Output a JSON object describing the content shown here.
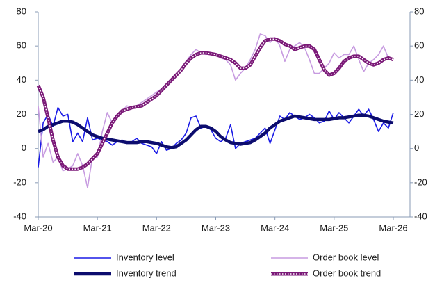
{
  "chart_data": {
    "type": "line",
    "categories": [
      "Mar-20",
      null,
      null,
      null,
      null,
      null,
      null,
      null,
      null,
      null,
      null,
      null,
      "Mar-21",
      null,
      null,
      null,
      null,
      null,
      null,
      null,
      null,
      null,
      null,
      null,
      "Mar-22",
      null,
      null,
      null,
      null,
      null,
      null,
      null,
      null,
      null,
      null,
      null,
      "Mar-23",
      null,
      null,
      null,
      null,
      null,
      null,
      null,
      null,
      null,
      null,
      null,
      "Mar-24",
      null,
      null,
      null,
      null,
      null,
      null,
      null,
      null,
      null,
      null,
      null,
      "Mar-25",
      null,
      null,
      null,
      null,
      null,
      null,
      null,
      null,
      null,
      null,
      null,
      "Mar-26"
    ],
    "ylim": [
      -40,
      80
    ],
    "yticks": [
      -40,
      -20,
      0,
      20,
      40,
      60,
      80
    ],
    "y2lim": [
      -40,
      80
    ],
    "y2ticks": [
      -40,
      -20,
      0,
      20,
      40,
      60,
      80
    ],
    "series": [
      {
        "name": "Inventory level",
        "color": "#1a1ae6",
        "style": "thin",
        "values": [
          -11,
          15,
          20,
          13,
          24,
          19,
          20,
          4,
          9,
          4,
          18,
          5,
          6,
          5,
          4,
          2,
          4,
          5,
          3,
          4,
          6,
          3,
          2,
          1,
          -3,
          4,
          -1,
          0,
          3,
          5,
          9,
          18,
          19,
          12,
          13,
          11,
          6,
          4,
          6,
          14,
          0,
          3,
          4,
          5,
          6,
          9,
          12,
          3,
          11,
          19,
          17,
          21,
          19,
          17,
          18,
          20,
          18,
          15,
          16,
          22,
          17,
          21,
          18,
          15,
          19,
          23,
          19,
          23,
          17,
          10,
          15,
          12,
          21
        ]
      },
      {
        "name": "Order book level",
        "color": "#c79be0",
        "style": "thin",
        "values": [
          25,
          -5,
          3,
          -8,
          -5,
          -13,
          -12,
          -10,
          -3,
          -10,
          -23,
          -5,
          -5,
          10,
          21,
          15,
          20,
          22,
          25,
          24,
          25,
          27,
          29,
          31,
          33,
          35,
          38,
          41,
          44,
          47,
          51,
          55,
          58,
          56,
          55,
          56,
          55,
          53,
          52,
          49,
          40,
          44,
          47,
          52,
          58,
          67,
          66,
          62,
          65,
          60,
          51,
          58,
          60,
          62,
          59,
          52,
          44,
          44,
          47,
          50,
          56,
          53,
          55,
          55,
          60,
          52,
          45,
          50,
          52,
          55,
          60,
          53,
          52
        ]
      },
      {
        "name": "Inventory trend",
        "color": "#0c0c6e",
        "style": "thick",
        "values": [
          10,
          11,
          13,
          14,
          15,
          16,
          16,
          15.5,
          14,
          12,
          10,
          8,
          7,
          6,
          5.5,
          5,
          4.5,
          4,
          3.5,
          3.5,
          3.5,
          4,
          4,
          3.5,
          3,
          2,
          1,
          0.5,
          1,
          3,
          5,
          8,
          11,
          13,
          13,
          12,
          10,
          7,
          5,
          3.5,
          3,
          2.5,
          3,
          3.5,
          5,
          7,
          9,
          12,
          14,
          16,
          17,
          18,
          19,
          18.5,
          18,
          17.5,
          17,
          17,
          17,
          17,
          17.5,
          18,
          18,
          18.5,
          19,
          19.5,
          19.5,
          19,
          18,
          17,
          16,
          15.5,
          15
        ]
      },
      {
        "name": "Order book trend",
        "color": "#7b1a78",
        "style": "thick-dotted",
        "values": [
          37,
          30,
          18,
          5,
          -5,
          -10,
          -12,
          -12,
          -12,
          -11,
          -9,
          -6,
          -3,
          3,
          9,
          15,
          19,
          22,
          23,
          24,
          24.5,
          25,
          27,
          29,
          31,
          34,
          37,
          40,
          43,
          46,
          50,
          53,
          55,
          56,
          56,
          55.5,
          55,
          54,
          53,
          52,
          50,
          47,
          47,
          49,
          54,
          59,
          63,
          64,
          64,
          63,
          61,
          60,
          58,
          59,
          60,
          60,
          58,
          52,
          46,
          43,
          44,
          47,
          51,
          53,
          54,
          54,
          52,
          50,
          49,
          50,
          52,
          53,
          52
        ]
      }
    ]
  }
}
